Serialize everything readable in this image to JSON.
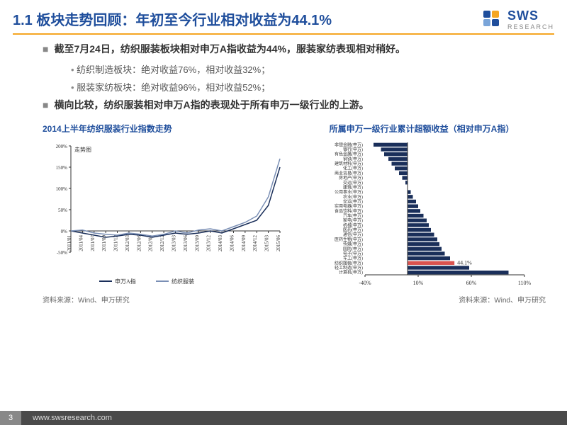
{
  "header": {
    "title": "1.1 板块走势回顾：年初至今行业相对收益为44.1%",
    "logo_main": "SWS",
    "logo_sub": "RESEARCH"
  },
  "bullets": {
    "main1": "截至7月24日，纺织服装板块相对申万A指收益为44%，服装家纺表现相对稍好。",
    "sub1": "纺织制造板块：绝对收益76%，相对收益32%；",
    "sub2": "服装家纺板块：绝对收益96%，相对收益52%；",
    "main2": "横向比较，纺织服装相对申万A指的表现处于所有申万一级行业的上游。"
  },
  "chart_left": {
    "title": "2014上半年纺织服装行业指数走势",
    "type": "line",
    "ylabel": "走势图",
    "ylim": [
      -50,
      200
    ],
    "yticks": [
      "-50%",
      "0%",
      "50%",
      "100%",
      "150%",
      "200%"
    ],
    "xticks": [
      "2011/01",
      "2011/04",
      "2011/07",
      "2011/09",
      "2011/12",
      "2012/03",
      "2012/06",
      "2012/09",
      "2012/12",
      "2013/03",
      "2013/06",
      "2013/09",
      "2013/12",
      "2014/03",
      "2014/06",
      "2014/09",
      "2014/12",
      "2015/03",
      "2015/06"
    ],
    "series": [
      {
        "name": "申万A指",
        "color": "#1a2f5a",
        "width": 1.5,
        "values": [
          0,
          -5,
          -10,
          -15,
          -12,
          -8,
          -10,
          -15,
          -10,
          -5,
          -8,
          -5,
          0,
          -5,
          5,
          15,
          25,
          60,
          150
        ]
      },
      {
        "name": "纺织服装",
        "color": "#7a8fb5",
        "width": 1.5,
        "values": [
          0,
          2,
          -5,
          -8,
          -10,
          -5,
          -8,
          -12,
          -8,
          0,
          -5,
          2,
          5,
          0,
          10,
          20,
          35,
          80,
          170
        ]
      }
    ],
    "source": "资料来源：Wind、申万研究",
    "background_color": "#ffffff",
    "axis_color": "#333333",
    "tick_fontsize": 7
  },
  "chart_right": {
    "title": "所属申万一级行业累计超额收益（相对申万A指）",
    "type": "hbar",
    "xlim": [
      -40,
      110
    ],
    "xticks": [
      "-40%",
      "10%",
      "60%",
      "110%"
    ],
    "bar_color": "#1a2f5a",
    "highlight_color": "#d9534f",
    "highlight_label": "44.1%",
    "label_fontsize": 6,
    "categories": [
      "非银金融(申万)",
      "银行(申万)",
      "有色金属(申万)",
      "钢铁(申万)",
      "建筑材料(申万)",
      "化工(申万)",
      "商业贸易(申万)",
      "房地产(申万)",
      "交运(申万)",
      "建筑(申万)",
      "公用事业(申万)",
      "农业(申万)",
      "交运(申万)",
      "实用电器(申万)",
      "食品饮料(申万)",
      "汽车(申万)",
      "家电(申万)",
      "机械(申万)",
      "医药(申万)",
      "通信(申万)",
      "医药生物(申万)",
      "传媒(申万)",
      "国防(申万)",
      "电子(申万)",
      "军工(申万)",
      "纺织服装(申万)",
      "轻工制造(申万)",
      "计算机(申万)"
    ],
    "values": [
      -32,
      -25,
      -22,
      -18,
      -15,
      -12,
      -8,
      -5,
      -2,
      0,
      3,
      5,
      8,
      10,
      12,
      15,
      18,
      20,
      22,
      25,
      28,
      30,
      32,
      35,
      40,
      44.1,
      58,
      95
    ],
    "highlight_index": 25,
    "source": "资料来源：Wind、申万研究",
    "background_color": "#ffffff",
    "axis_color": "#333333"
  },
  "footer": {
    "page": "3",
    "url": "www.swsresearch.com"
  }
}
